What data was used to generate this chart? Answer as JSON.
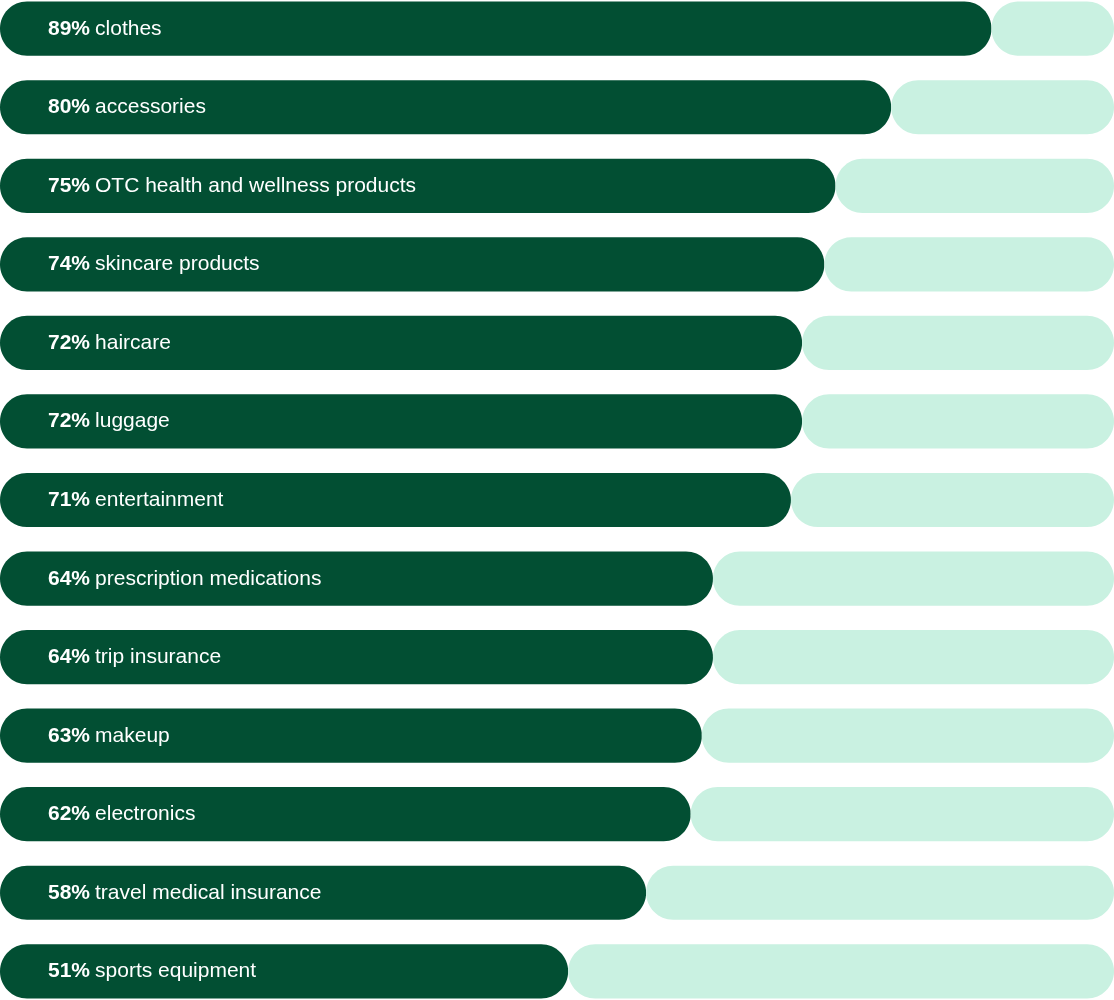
{
  "chart_data": {
    "type": "bar",
    "orientation": "horizontal",
    "stacked": true,
    "categories": [
      "clothes",
      "accessories",
      "OTC health and wellness products",
      "skincare products",
      "haircare",
      "luggage",
      "entertainment",
      "prescription medications",
      "trip insurance",
      "makeup",
      "electronics",
      "travel medical insurance",
      "sports equipment"
    ],
    "series": [
      {
        "color": "#024f33",
        "values": [
          89,
          80,
          75,
          74,
          72,
          72,
          71,
          64,
          64,
          63,
          62,
          58,
          51
        ],
        "value_labels": [
          "89%",
          "80%",
          "75%",
          "74%",
          "72%",
          "72%",
          "71%",
          "64%",
          "64%",
          "63%",
          "62%",
          "58%",
          "51%"
        ]
      },
      {
        "color": "#c9f1e1",
        "values": [
          11,
          20,
          25,
          26,
          28,
          28,
          29,
          36,
          36,
          37,
          38,
          42,
          49
        ]
      }
    ],
    "xlim": [
      0,
      100
    ]
  }
}
